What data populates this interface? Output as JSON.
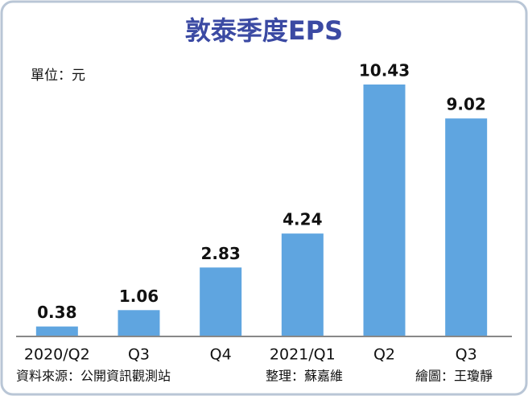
{
  "chart_data": {
    "type": "bar",
    "title": "敦泰季度EPS",
    "unit_label": "單位：元",
    "categories": [
      "2020/Q2",
      "Q3",
      "Q4",
      "2021/Q1",
      "Q2",
      "Q3"
    ],
    "values": [
      0.38,
      1.06,
      2.83,
      4.24,
      10.43,
      9.02
    ],
    "color": "#5fa5e0",
    "footer": {
      "source": "資料來源：公開資訊觀測站",
      "editor": "整理：蘇嘉維",
      "graphics": "繪圖：王瓊靜"
    }
  }
}
